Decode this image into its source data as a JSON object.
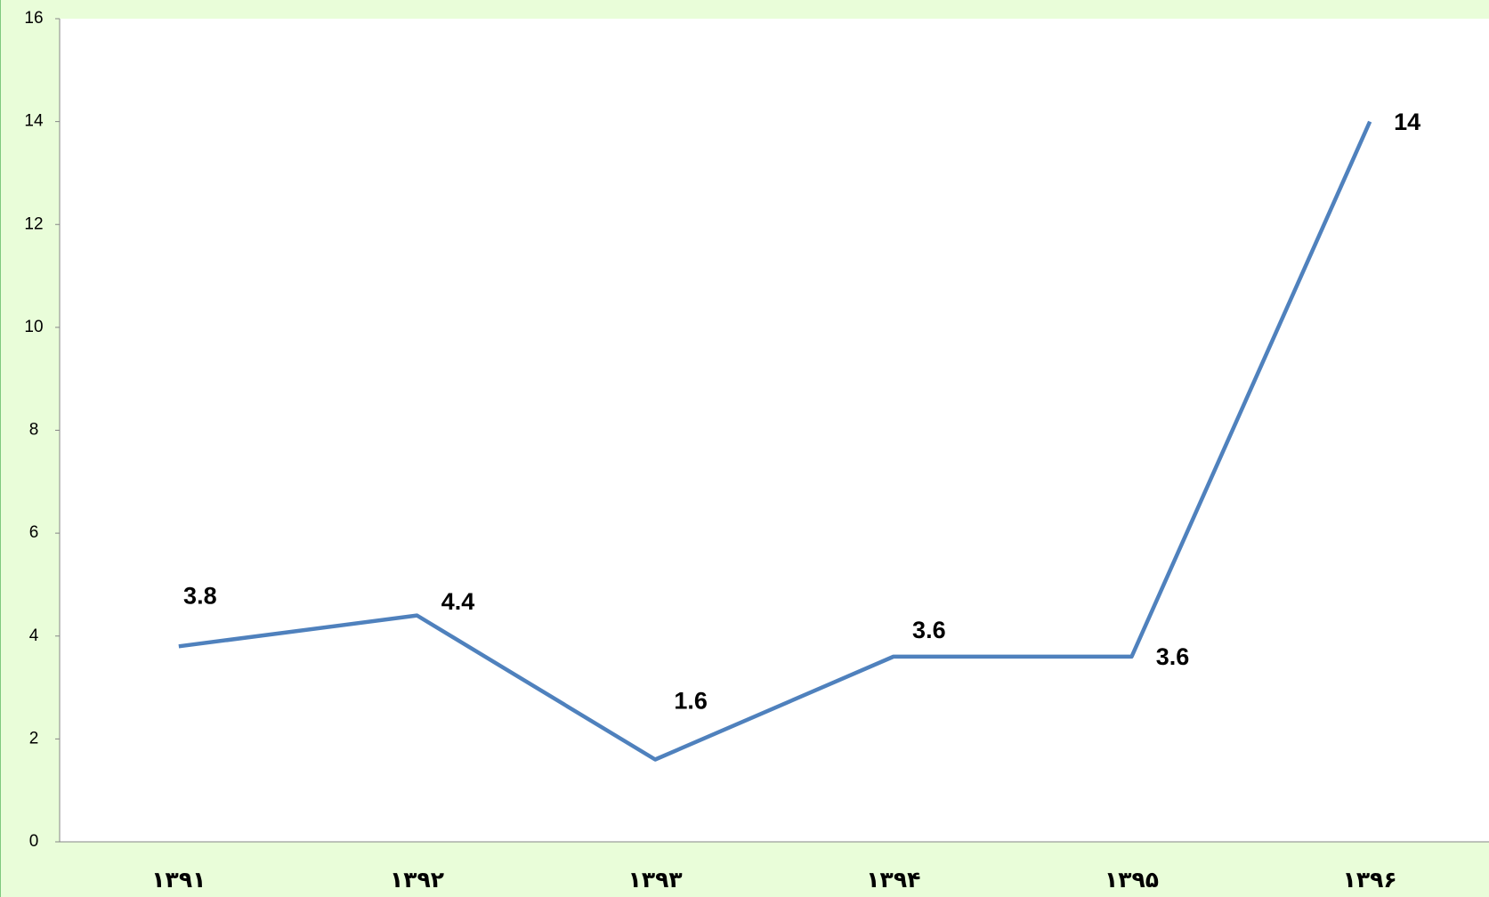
{
  "chart_data": {
    "type": "line",
    "categories": [
      "۱۳۹۱",
      "۱۳۹۲",
      "۱۳۹۳",
      "۱۳۹۴",
      "۱۳۹۵",
      "۱۳۹۶"
    ],
    "series": [
      {
        "color": "#4f81bd",
        "values": [
          3.8,
          4.4,
          1.6,
          3.6,
          3.6,
          14
        ]
      }
    ],
    "ylim": [
      0,
      16
    ],
    "yticks": [
      0,
      2,
      4,
      6,
      8,
      10,
      12,
      14,
      16
    ],
    "grid": false
  }
}
